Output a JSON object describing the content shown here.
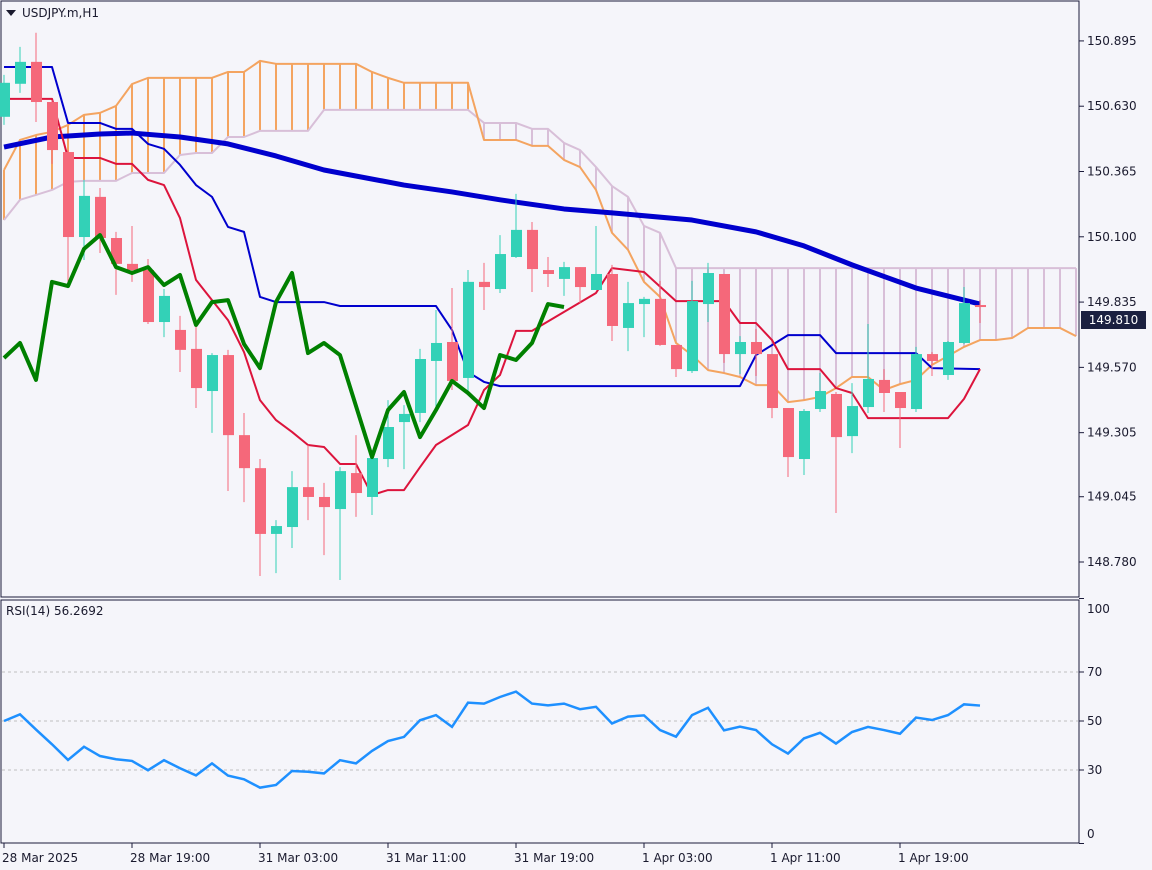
{
  "header": {
    "symbol_label": "USDJPY.m,H1"
  },
  "rsi_label": "RSI(14) 56.2692",
  "current_price": "149.810",
  "colors": {
    "background": "#f5f5fa",
    "frame": "#1a1a3a",
    "bull": "#33d1b7",
    "bear": "#f5687a",
    "tenkan": "#dc143c",
    "kijun": "#0000cd",
    "senkou_a": "#f4a460",
    "senkou_b": "#d8bfd8",
    "chikou": "#008000",
    "ma": "#0000cd",
    "rsi": "#1e90ff",
    "grid": "#c0c0c0",
    "price_tag": "#1b2040"
  },
  "chart_data": [
    {
      "type": "candlestick",
      "title": "USDJPY.m,H1",
      "ylim": [
        148.638,
        151.057
      ],
      "y_ticks": [
        "150.895",
        "150.630",
        "150.365",
        "150.100",
        "149.835",
        "149.570",
        "149.305",
        "149.045",
        "148.780"
      ],
      "x_ticks": [
        {
          "bar": 0,
          "label": "28 Mar 2025"
        },
        {
          "bar": 8,
          "label": "28 Mar 19:00"
        },
        {
          "bar": 16,
          "label": "31 Mar 03:00"
        },
        {
          "bar": 24,
          "label": "31 Mar 11:00"
        },
        {
          "bar": 32,
          "label": "31 Mar 19:00"
        },
        {
          "bar": 40,
          "label": "1 Apr 03:00"
        },
        {
          "bar": 48,
          "label": "1 Apr 11:00"
        },
        {
          "bar": 56,
          "label": "1 Apr 19:00"
        }
      ],
      "ohlc": [
        [
          150.587,
          150.757,
          150.554,
          150.725
        ],
        [
          150.721,
          150.871,
          150.684,
          150.81
        ],
        [
          150.81,
          150.928,
          150.566,
          150.647
        ],
        [
          150.647,
          150.655,
          150.396,
          150.452
        ],
        [
          150.444,
          150.452,
          149.917,
          150.099
        ],
        [
          150.099,
          150.331,
          150.006,
          150.266
        ],
        [
          150.262,
          150.298,
          150.034,
          150.095
        ],
        [
          150.095,
          150.12,
          149.864,
          149.99
        ],
        [
          149.99,
          150.144,
          149.917,
          149.965
        ],
        [
          149.965,
          150.01,
          149.746,
          149.754
        ],
        [
          149.754,
          149.888,
          149.693,
          149.86
        ],
        [
          149.722,
          149.779,
          149.551,
          149.641
        ],
        [
          149.645,
          149.742,
          149.405,
          149.486
        ],
        [
          149.474,
          149.628,
          149.304,
          149.62
        ],
        [
          149.62,
          149.641,
          149.068,
          149.295
        ],
        [
          149.295,
          149.385,
          149.023,
          149.161
        ],
        [
          149.161,
          149.198,
          148.723,
          148.894
        ],
        [
          148.894,
          148.95,
          148.735,
          148.926
        ],
        [
          148.922,
          149.149,
          148.837,
          149.084
        ],
        [
          149.084,
          149.255,
          148.95,
          149.044
        ],
        [
          149.044,
          149.101,
          148.808,
          149.003
        ],
        [
          148.995,
          149.165,
          148.707,
          149.149
        ],
        [
          149.141,
          149.295,
          148.963,
          149.06
        ],
        [
          149.044,
          149.202,
          148.971,
          149.202
        ],
        [
          149.198,
          149.437,
          149.165,
          149.328
        ],
        [
          149.348,
          149.417,
          149.157,
          149.381
        ],
        [
          149.385,
          149.645,
          149.348,
          149.604
        ],
        [
          149.596,
          149.803,
          149.397,
          149.669
        ],
        [
          149.673,
          149.892,
          149.478,
          149.515
        ],
        [
          149.527,
          149.965,
          149.466,
          149.917
        ],
        [
          149.917,
          149.994,
          149.803,
          149.896
        ],
        [
          149.888,
          150.107,
          149.872,
          150.03
        ],
        [
          150.018,
          150.274,
          150.014,
          150.128
        ],
        [
          150.128,
          150.16,
          149.876,
          149.969
        ],
        [
          149.965,
          150.018,
          149.896,
          149.949
        ],
        [
          149.929,
          149.998,
          149.86,
          149.977
        ],
        [
          149.977,
          149.977,
          149.831,
          149.896
        ],
        [
          149.884,
          150.144,
          149.884,
          149.949
        ],
        [
          149.949,
          149.986,
          149.677,
          149.738
        ],
        [
          149.73,
          149.917,
          149.636,
          149.831
        ],
        [
          149.827,
          149.856,
          149.693,
          149.848
        ],
        [
          149.848,
          149.921,
          149.657,
          149.661
        ],
        [
          149.661,
          149.661,
          149.531,
          149.563
        ],
        [
          149.555,
          149.921,
          149.547,
          149.839
        ],
        [
          149.827,
          149.994,
          149.754,
          149.953
        ],
        [
          149.949,
          149.949,
          149.588,
          149.624
        ],
        [
          149.624,
          149.697,
          149.543,
          149.673
        ],
        [
          149.673,
          149.726,
          149.535,
          149.624
        ],
        [
          149.624,
          149.624,
          149.364,
          149.405
        ],
        [
          149.405,
          149.405,
          149.125,
          149.206
        ],
        [
          149.198,
          149.401,
          149.133,
          149.393
        ],
        [
          149.401,
          149.547,
          149.389,
          149.474
        ],
        [
          149.462,
          149.47,
          148.979,
          149.287
        ],
        [
          149.291,
          149.506,
          149.222,
          149.413
        ],
        [
          149.409,
          149.746,
          149.385,
          149.523
        ],
        [
          149.519,
          149.563,
          149.389,
          149.466
        ],
        [
          149.47,
          149.47,
          149.243,
          149.405
        ],
        [
          149.401,
          149.653,
          149.389,
          149.624
        ],
        [
          149.624,
          149.632,
          149.535,
          149.596
        ],
        [
          149.539,
          149.677,
          149.519,
          149.673
        ],
        [
          149.669,
          149.896,
          149.665,
          149.831
        ],
        [
          149.823,
          149.843,
          149.75,
          149.815
        ]
      ],
      "ma": [
        [
          0,
          150.464
        ],
        [
          3,
          150.505
        ],
        [
          6,
          150.517
        ],
        [
          8,
          150.521
        ],
        [
          11,
          150.505
        ],
        [
          14,
          150.477
        ],
        [
          17,
          150.428
        ],
        [
          20,
          150.371
        ],
        [
          25,
          150.31
        ],
        [
          28,
          150.282
        ],
        [
          31,
          150.25
        ],
        [
          35,
          150.213
        ],
        [
          38,
          150.197
        ],
        [
          43,
          150.168
        ],
        [
          47,
          150.12
        ],
        [
          50,
          150.063
        ],
        [
          53,
          149.986
        ],
        [
          57,
          149.892
        ],
        [
          61,
          149.827
        ]
      ],
      "tenkan": [
        [
          0,
          150.66
        ],
        [
          3,
          150.66
        ],
        [
          4,
          150.42
        ],
        [
          6,
          150.42
        ],
        [
          7,
          150.396
        ],
        [
          8,
          150.396
        ],
        [
          9,
          150.331
        ],
        [
          10,
          150.31
        ],
        [
          11,
          150.176
        ],
        [
          12,
          149.925
        ],
        [
          13,
          149.843
        ],
        [
          14,
          149.762
        ],
        [
          15,
          149.632
        ],
        [
          16,
          149.437
        ],
        [
          17,
          149.356
        ],
        [
          18,
          149.308
        ],
        [
          19,
          149.255
        ],
        [
          20,
          149.247
        ],
        [
          21,
          149.178
        ],
        [
          22,
          149.178
        ],
        [
          23,
          149.052
        ],
        [
          24,
          149.072
        ],
        [
          25,
          149.072
        ],
        [
          26,
          149.165
        ],
        [
          27,
          149.255
        ],
        [
          29,
          149.336
        ],
        [
          30,
          149.478
        ],
        [
          31,
          149.539
        ],
        [
          32,
          149.718
        ],
        [
          33,
          149.718
        ],
        [
          37,
          149.872
        ],
        [
          38,
          149.973
        ],
        [
          40,
          149.957
        ],
        [
          42,
          149.839
        ],
        [
          45,
          149.839
        ],
        [
          46,
          149.75
        ],
        [
          47,
          149.75
        ],
        [
          48,
          149.681
        ],
        [
          49,
          149.563
        ],
        [
          51,
          149.563
        ],
        [
          52,
          149.486
        ],
        [
          53,
          149.466
        ],
        [
          54,
          149.364
        ],
        [
          59,
          149.364
        ],
        [
          60,
          149.442
        ],
        [
          61,
          149.563
        ]
      ],
      "kijun": [
        [
          0,
          150.789
        ],
        [
          3,
          150.789
        ],
        [
          4,
          150.562
        ],
        [
          6,
          150.562
        ],
        [
          7,
          150.538
        ],
        [
          8,
          150.538
        ],
        [
          9,
          150.477
        ],
        [
          10,
          150.457
        ],
        [
          11,
          150.392
        ],
        [
          12,
          150.31
        ],
        [
          13,
          150.262
        ],
        [
          14,
          150.14
        ],
        [
          15,
          150.12
        ],
        [
          16,
          149.856
        ],
        [
          17,
          149.835
        ],
        [
          20,
          149.835
        ],
        [
          21,
          149.819
        ],
        [
          27,
          149.819
        ],
        [
          28,
          149.722
        ],
        [
          29,
          149.551
        ],
        [
          30,
          149.511
        ],
        [
          31,
          149.494
        ],
        [
          46,
          149.494
        ],
        [
          47,
          149.62
        ],
        [
          49,
          149.701
        ],
        [
          51,
          149.701
        ],
        [
          52,
          149.628
        ],
        [
          57,
          149.628
        ],
        [
          58,
          149.567
        ],
        [
          61,
          149.563
        ]
      ],
      "chikou": [
        [
          0,
          149.608
        ],
        [
          1,
          149.669
        ],
        [
          2,
          149.519
        ],
        [
          3,
          149.917
        ],
        [
          4,
          149.9
        ],
        [
          5,
          150.051
        ],
        [
          6,
          150.107
        ],
        [
          7,
          149.977
        ],
        [
          8,
          149.953
        ],
        [
          9,
          149.977
        ],
        [
          10,
          149.904
        ],
        [
          11,
          149.945
        ],
        [
          12,
          149.742
        ],
        [
          13,
          149.835
        ],
        [
          14,
          149.843
        ],
        [
          15,
          149.665
        ],
        [
          16,
          149.567
        ],
        [
          17,
          149.835
        ],
        [
          18,
          149.953
        ],
        [
          19,
          149.628
        ],
        [
          20,
          149.669
        ],
        [
          21,
          149.62
        ],
        [
          23,
          149.206
        ],
        [
          24,
          149.397
        ],
        [
          25,
          149.47
        ],
        [
          26,
          149.287
        ],
        [
          27,
          149.397
        ],
        [
          28,
          149.515
        ],
        [
          29,
          149.466
        ],
        [
          30,
          149.405
        ],
        [
          31,
          149.62
        ],
        [
          32,
          149.6
        ],
        [
          33,
          149.669
        ],
        [
          34,
          149.827
        ],
        [
          35,
          149.815
        ]
      ],
      "senkou_a": [
        150.371,
        150.493,
        150.513,
        150.526,
        150.554,
        150.595,
        150.603,
        150.631,
        150.72,
        150.745,
        150.745,
        150.745,
        150.745,
        150.745,
        150.769,
        150.769,
        150.814,
        150.802,
        150.802,
        150.802,
        150.802,
        150.802,
        150.802,
        150.769,
        150.745,
        150.725,
        150.725,
        150.725,
        150.725,
        150.725,
        150.493,
        150.493,
        150.493,
        150.469,
        150.469,
        150.412,
        150.383,
        150.29,
        150.116,
        150.047,
        149.917,
        149.856,
        149.669,
        149.62,
        149.559,
        149.547,
        149.531,
        149.498,
        149.498,
        149.429,
        149.437,
        149.45,
        149.486,
        149.531,
        149.531,
        149.478,
        149.502,
        149.519,
        149.58,
        149.616,
        149.653,
        149.681,
        149.681,
        149.689,
        149.73,
        149.73,
        149.73,
        149.697
      ],
      "senkou_b": [
        150.168,
        150.25,
        150.27,
        150.29,
        150.323,
        150.327,
        150.327,
        150.327,
        150.359,
        150.359,
        150.359,
        150.432,
        150.44,
        150.44,
        150.505,
        150.505,
        150.53,
        150.53,
        150.53,
        150.53,
        150.615,
        150.615,
        150.615,
        150.615,
        150.615,
        150.615,
        150.615,
        150.615,
        150.615,
        150.615,
        150.562,
        150.562,
        150.562,
        150.538,
        150.538,
        150.481,
        150.452,
        150.383,
        150.306,
        150.262,
        150.144,
        150.116,
        149.973,
        149.973,
        149.973,
        149.973,
        149.973,
        149.973,
        149.973,
        149.973,
        149.973,
        149.973,
        149.973,
        149.973,
        149.973,
        149.973,
        149.973,
        149.973,
        149.973,
        149.973,
        149.973,
        149.973,
        149.973,
        149.973,
        149.973,
        149.973,
        149.973,
        149.973
      ]
    },
    {
      "type": "line",
      "title": "RSI(14) 56.2692",
      "ylim": [
        0,
        100
      ],
      "y_ticks": [
        "100",
        "70",
        "50",
        "30",
        "0"
      ],
      "levels": [
        70,
        50,
        30
      ],
      "values": [
        50.0,
        52.7,
        46.5,
        40.5,
        34.1,
        39.5,
        35.7,
        34.4,
        33.7,
        29.9,
        34.0,
        30.7,
        27.8,
        32.7,
        27.7,
        26.2,
        22.8,
        23.9,
        29.6,
        29.3,
        28.6,
        34.0,
        32.7,
        37.8,
        41.8,
        43.5,
        50.3,
        52.4,
        47.6,
        57.5,
        57.1,
        59.8,
        62.0,
        57.1,
        56.4,
        57.1,
        54.8,
        55.8,
        49.0,
        51.8,
        52.3,
        46.3,
        43.6,
        52.4,
        55.4,
        46.2,
        47.7,
        46.3,
        40.5,
        36.7,
        42.9,
        45.2,
        40.8,
        45.5,
        47.6,
        46.3,
        44.8,
        51.4,
        50.4,
        52.4,
        56.8,
        56.3
      ]
    }
  ]
}
